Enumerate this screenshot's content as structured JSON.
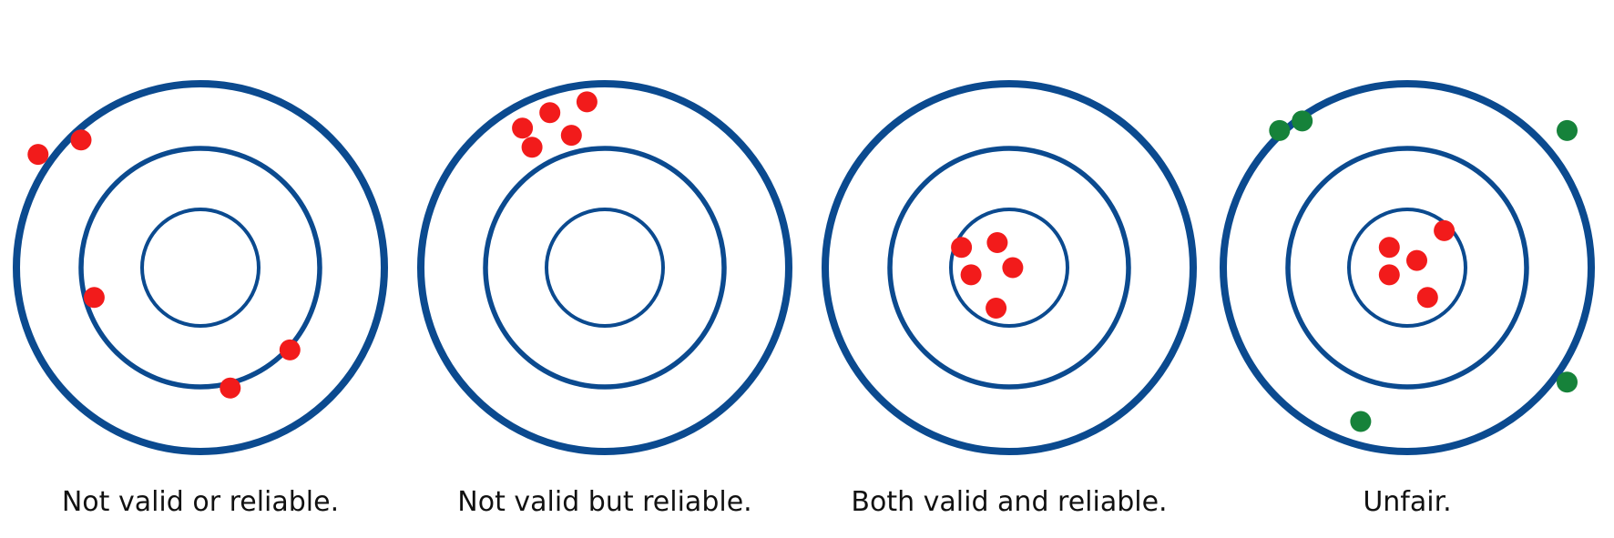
{
  "colors": {
    "ring": "#0b4a8f",
    "red_dot": "#f21b1b",
    "green_dot": "#16823a",
    "caption_text": "#111111"
  },
  "targets": [
    {
      "caption": "Not valid or reliable.",
      "hits": [
        {
          "color": "red",
          "dx": -1.0,
          "dy": -1.07
        },
        {
          "color": "red",
          "dx": -1.36,
          "dy": -0.95
        },
        {
          "color": "red",
          "dx": 0.75,
          "dy": 0.69
        },
        {
          "color": "red",
          "dx": -0.89,
          "dy": 0.25
        },
        {
          "color": "red",
          "dx": 0.25,
          "dy": 1.01
        }
      ]
    },
    {
      "caption": "Not valid but reliable.",
      "hits": [
        {
          "color": "red",
          "dx": -0.69,
          "dy": -1.17
        },
        {
          "color": "red",
          "dx": -0.46,
          "dy": -1.3
        },
        {
          "color": "red",
          "dx": -0.61,
          "dy": -1.01
        },
        {
          "color": "red",
          "dx": -0.28,
          "dy": -1.11
        },
        {
          "color": "red",
          "dx": -0.15,
          "dy": -1.39
        }
      ]
    },
    {
      "caption": "Both valid and reliable.",
      "hits": [
        {
          "color": "red",
          "dx": -0.4,
          "dy": -0.17
        },
        {
          "color": "red",
          "dx": -0.1,
          "dy": -0.21
        },
        {
          "color": "red",
          "dx": 0.03,
          "dy": 0.0
        },
        {
          "color": "red",
          "dx": -0.32,
          "dy": 0.06
        },
        {
          "color": "red",
          "dx": -0.11,
          "dy": 0.34
        }
      ]
    },
    {
      "caption": "Unfair.",
      "hits": [
        {
          "color": "red",
          "dx": 0.31,
          "dy": -0.31
        },
        {
          "color": "red",
          "dx": -0.15,
          "dy": -0.17
        },
        {
          "color": "red",
          "dx": 0.08,
          "dy": -0.06
        },
        {
          "color": "red",
          "dx": -0.15,
          "dy": 0.06
        },
        {
          "color": "red",
          "dx": 0.17,
          "dy": 0.25
        },
        {
          "color": "green",
          "dx": -0.88,
          "dy": -1.23
        },
        {
          "color": "green",
          "dx": -1.07,
          "dy": -1.15
        },
        {
          "color": "green",
          "dx": 1.34,
          "dy": -1.15
        },
        {
          "color": "green",
          "dx": 1.34,
          "dy": 0.96
        },
        {
          "color": "green",
          "dx": -0.39,
          "dy": 1.29
        }
      ]
    }
  ]
}
